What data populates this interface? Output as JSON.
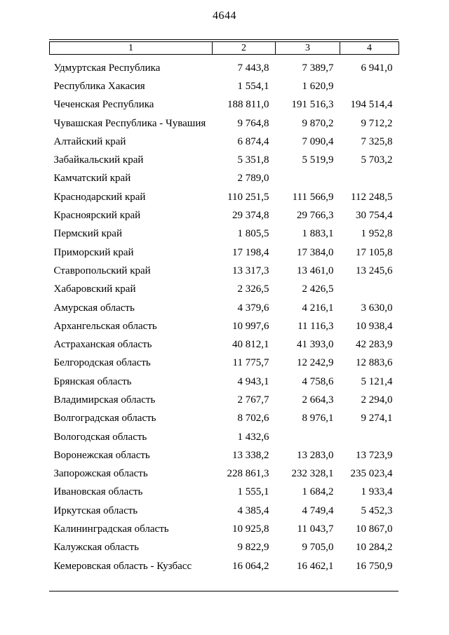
{
  "page": {
    "number": "4644"
  },
  "table": {
    "headers": [
      "1",
      "2",
      "3",
      "4"
    ],
    "rows": [
      [
        "Удмуртская Республика",
        "7 443,8",
        "7 389,7",
        "6 941,0"
      ],
      [
        "Республика Хакасия",
        "1 554,1",
        "1 620,9",
        ""
      ],
      [
        "Чеченская Республика",
        "188 811,0",
        "191 516,3",
        "194 514,4"
      ],
      [
        "Чувашская Республика - Чувашия",
        "9 764,8",
        "9 870,2",
        "9 712,2"
      ],
      [
        "Алтайский край",
        "6 874,4",
        "7 090,4",
        "7 325,8"
      ],
      [
        "Забайкальский край",
        "5 351,8",
        "5 519,9",
        "5 703,2"
      ],
      [
        "Камчатский край",
        "2 789,0",
        "",
        ""
      ],
      [
        "Краснодарский край",
        "110 251,5",
        "111 566,9",
        "112 248,5"
      ],
      [
        "Красноярский край",
        "29 374,8",
        "29 766,3",
        "30 754,4"
      ],
      [
        "Пермский край",
        "1 805,5",
        "1 883,1",
        "1 952,8"
      ],
      [
        "Приморский край",
        "17 198,4",
        "17 384,0",
        "17 105,8"
      ],
      [
        "Ставропольский край",
        "13 317,3",
        "13 461,0",
        "13 245,6"
      ],
      [
        "Хабаровский край",
        "2 326,5",
        "2 426,5",
        ""
      ],
      [
        "Амурская область",
        "4 379,6",
        "4 216,1",
        "3 630,0"
      ],
      [
        "Архангельская область",
        "10 997,6",
        "11 116,3",
        "10 938,4"
      ],
      [
        "Астраханская область",
        "40 812,1",
        "41 393,0",
        "42 283,9"
      ],
      [
        "Белгородская область",
        "11 775,7",
        "12 242,9",
        "12 883,6"
      ],
      [
        "Брянская область",
        "4 943,1",
        "4 758,6",
        "5 121,4"
      ],
      [
        "Владимирская область",
        "2 767,7",
        "2 664,3",
        "2 294,0"
      ],
      [
        "Волгоградская область",
        "8 702,6",
        "8 976,1",
        "9 274,1"
      ],
      [
        "Вологодская область",
        "1 432,6",
        "",
        ""
      ],
      [
        "Воронежская область",
        "13 338,2",
        "13 283,0",
        "13 723,9"
      ],
      [
        "Запорожская область",
        "228 861,3",
        "232 328,1",
        "235 023,4"
      ],
      [
        "Ивановская область",
        "1 555,1",
        "1 684,2",
        "1 933,4"
      ],
      [
        "Иркутская область",
        "4 385,4",
        "4 749,4",
        "5 452,3"
      ],
      [
        "Калининградская область",
        "10 925,8",
        "11 043,7",
        "10 867,0"
      ],
      [
        "Калужская область",
        "9 822,9",
        "9 705,0",
        "10 284,2"
      ],
      [
        "Кемеровская область - Кузбасс",
        "16 064,2",
        "16 462,1",
        "16 750,9"
      ]
    ]
  }
}
